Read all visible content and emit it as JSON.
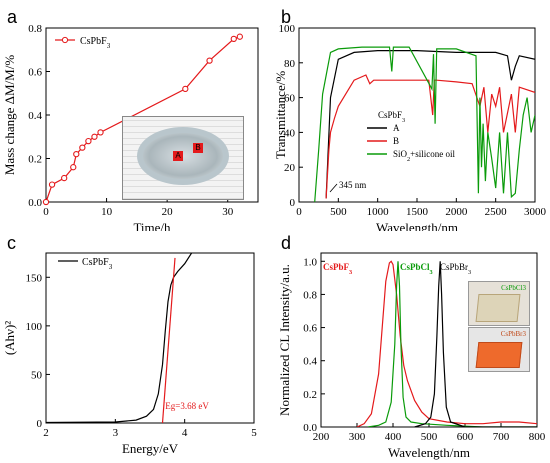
{
  "panel_letters": [
    "a",
    "b",
    "c",
    "d"
  ],
  "colors": {
    "red": "#e41a1c",
    "green": "#0a9b0a",
    "black": "#000000",
    "orange": "#ee6a2c",
    "gray_frame": "#555555"
  },
  "chart_data": [
    {
      "id": "a",
      "type": "line",
      "xlabel": "Time/h",
      "ylabel": "Mass change ΔM/M/%",
      "xlim": [
        0,
        35
      ],
      "ylim": [
        0,
        0.8
      ],
      "xticks": [
        "0",
        "10",
        "20",
        "30"
      ],
      "yticks": [
        "0.0",
        "0.2",
        "0.4",
        "0.6",
        "0.8"
      ],
      "legend": "CsPbF3",
      "legend_placement": "top-left",
      "series": [
        {
          "name": "CsPbF3",
          "color": "#e41a1c",
          "marker": "circle-open",
          "x": [
            0,
            1,
            3,
            4.5,
            5,
            6,
            7,
            8,
            9,
            23,
            27,
            31,
            32
          ],
          "y": [
            0,
            0.08,
            0.11,
            0.16,
            0.22,
            0.25,
            0.28,
            0.3,
            0.32,
            0.52,
            0.65,
            0.75,
            0.76
          ]
        }
      ],
      "inset_labels": [
        "A",
        "B"
      ]
    },
    {
      "id": "b",
      "type": "line",
      "xlabel": "Wavelength/nm",
      "ylabel": "Transmittance/%",
      "xlim": [
        0,
        3000
      ],
      "ylim": [
        0,
        100
      ],
      "xticks": [
        "0",
        "500",
        "1000",
        "1500",
        "2000",
        "2500",
        "3000"
      ],
      "yticks": [
        "0",
        "20",
        "40",
        "60",
        "80",
        "100"
      ],
      "legend_title": "CsPbF3",
      "legend_placement": "center-left",
      "annotation": "345 nm",
      "series": [
        {
          "name": "A",
          "color": "#000000",
          "x": [
            345,
            400,
            500,
            700,
            1000,
            1500,
            2000,
            2500,
            2650,
            2700,
            2750,
            2800,
            3000
          ],
          "y": [
            2,
            60,
            82,
            86,
            87,
            87,
            86,
            86,
            84,
            70,
            78,
            84,
            82
          ]
        },
        {
          "name": "B",
          "color": "#e41a1c",
          "x": [
            345,
            380,
            400,
            450,
            500,
            700,
            850,
            900,
            950,
            1200,
            1650,
            1700,
            1720,
            1750,
            2000,
            2200,
            2300,
            2350,
            2400,
            2450,
            2500,
            2550,
            2600,
            2700,
            2750,
            2800,
            3000
          ],
          "y": [
            2,
            30,
            40,
            48,
            55,
            70,
            73,
            68,
            70,
            70,
            70,
            50,
            70,
            70,
            69,
            68,
            55,
            66,
            40,
            62,
            55,
            66,
            40,
            62,
            40,
            66,
            63
          ]
        },
        {
          "name": "SiO2+silicone oil",
          "color": "#0a9b0a",
          "x": [
            200,
            250,
            300,
            400,
            500,
            800,
            1150,
            1180,
            1200,
            1400,
            1690,
            1710,
            1730,
            1750,
            2000,
            2250,
            2280,
            2300,
            2320,
            2340,
            2370,
            2400,
            2450,
            2500,
            2550,
            2600,
            2650,
            2700,
            2750,
            2800,
            2850,
            2900,
            2950,
            3000
          ],
          "y": [
            0,
            30,
            62,
            86,
            88,
            89,
            89,
            75,
            89,
            89,
            65,
            85,
            45,
            88,
            88,
            84,
            5,
            60,
            20,
            45,
            12,
            40,
            25,
            8,
            40,
            5,
            40,
            3,
            5,
            30,
            50,
            60,
            40,
            50
          ]
        }
      ]
    },
    {
      "id": "c",
      "type": "line",
      "xlabel": "Energy/eV",
      "ylabel": "(Ahν)²",
      "xlim": [
        2,
        5
      ],
      "ylim": [
        0,
        175
      ],
      "xticks": [
        "2",
        "3",
        "4",
        "5"
      ],
      "yticks": [
        "0",
        "50",
        "100",
        "150"
      ],
      "legend": "CsPbF3",
      "legend_placement": "top-left",
      "annotation": "Eg=3.68 eV",
      "series": [
        {
          "name": "CsPbF3",
          "color": "#000000",
          "x": [
            2.0,
            3.0,
            3.3,
            3.45,
            3.55,
            3.62,
            3.68,
            3.72,
            3.76,
            3.8,
            3.84,
            3.9,
            4.0,
            4.1,
            4.2
          ],
          "y": [
            0.5,
            1,
            3,
            7,
            14,
            30,
            60,
            95,
            125,
            142,
            150,
            156,
            164,
            175,
            185
          ]
        },
        {
          "name": "fit",
          "color": "#e41a1c",
          "x": [
            3.68,
            3.86
          ],
          "y": [
            0,
            170
          ]
        }
      ]
    },
    {
      "id": "d",
      "type": "line",
      "xlabel": "Wavelength/nm",
      "ylabel": "Normalized CL Intensity/a.u.",
      "xlim": [
        200,
        800
      ],
      "ylim": [
        0,
        1.05
      ],
      "xticks": [
        "200",
        "300",
        "400",
        "500",
        "600",
        "700",
        "800"
      ],
      "yticks": [
        "0.0",
        "0.2",
        "0.4",
        "0.6",
        "0.8",
        "1.0"
      ],
      "legend_placement": "top",
      "series": [
        {
          "name": "CsPbF3",
          "color": "#e41a1c",
          "x": [
            300,
            320,
            340,
            360,
            370,
            380,
            390,
            395,
            400,
            410,
            420,
            430,
            440,
            460,
            480,
            500,
            550,
            600,
            650,
            700,
            750,
            800
          ],
          "y": [
            0,
            0.02,
            0.08,
            0.32,
            0.6,
            0.88,
            0.99,
            1.0,
            0.98,
            0.8,
            0.55,
            0.37,
            0.28,
            0.16,
            0.09,
            0.05,
            0.03,
            0.02,
            0.02,
            0.03,
            0.03,
            0.02
          ]
        },
        {
          "name": "CsPbCl3",
          "color": "#0a9b0a",
          "x": [
            330,
            360,
            380,
            395,
            405,
            410,
            414,
            418,
            422,
            428,
            436,
            450,
            480,
            550,
            650,
            800
          ],
          "y": [
            0,
            0.01,
            0.03,
            0.15,
            0.5,
            0.85,
            1.0,
            0.85,
            0.5,
            0.18,
            0.06,
            0.03,
            0.02,
            0.01,
            0.0,
            0.0
          ]
        },
        {
          "name": "CsPbBr3",
          "color": "#000000",
          "x": [
            460,
            490,
            505,
            515,
            522,
            527,
            531,
            535,
            540,
            548,
            560,
            600,
            700,
            800
          ],
          "y": [
            0,
            0.02,
            0.06,
            0.2,
            0.55,
            0.85,
            1.0,
            0.8,
            0.45,
            0.12,
            0.03,
            0.0,
            0.0,
            0.0
          ]
        }
      ],
      "inset_labels": [
        "CsPbCl3",
        "CsPbBr3"
      ]
    }
  ]
}
